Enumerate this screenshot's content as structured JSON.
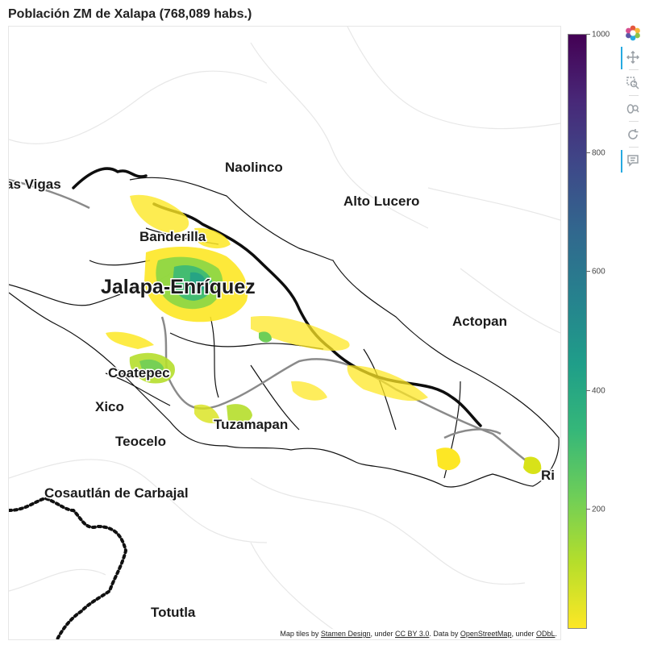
{
  "title": "Población ZM de Xalapa (768,089 habs.)",
  "map": {
    "places": [
      {
        "name": "Las Vigas",
        "shown": "as Vigas"
      },
      {
        "name": "Naolinco",
        "shown": "Naolinco"
      },
      {
        "name": "Alto Lucero",
        "shown": "Alto Lucero"
      },
      {
        "name": "Banderilla",
        "shown": "Banderilla"
      },
      {
        "name": "Xalapa-Enríquez",
        "shown": "Jalapa-Enríquez"
      },
      {
        "name": "Actopan",
        "shown": "Actopan"
      },
      {
        "name": "Coatepec",
        "shown": "Coatepec"
      },
      {
        "name": "Xico",
        "shown": "Xico"
      },
      {
        "name": "Tuzamapan",
        "shown": "Tuzamapan"
      },
      {
        "name": "Teocelo",
        "shown": "Teocelo"
      },
      {
        "name": "Rinconada",
        "shown": "Ri"
      },
      {
        "name": "Cosautlán de Carbajal",
        "shown": "Cosautlán de Carbajal"
      },
      {
        "name": "Totutla",
        "shown": "Totutla"
      }
    ],
    "attribution": {
      "prefix": "Map tiles by ",
      "link1": "Stamen Design",
      "mid1": ", under ",
      "link2": "CC BY 3.0",
      "mid2": ". Data by ",
      "link3": "OpenStreetMap",
      "mid3": ", under ",
      "link4": "ODbL",
      "suffix": "."
    }
  },
  "colorbar": {
    "palette": "Viridis (reversed)",
    "low": 0,
    "high": 1000,
    "ticks": [
      "1000",
      "800",
      "600",
      "400",
      "200"
    ],
    "colors": [
      "#fde725",
      "#b5de2b",
      "#6ece58",
      "#35b779",
      "#1f9e89",
      "#26828e",
      "#31688e",
      "#3e4989",
      "#482878",
      "#440154"
    ]
  },
  "toolbar": {
    "tools": [
      {
        "name": "bokeh-logo-icon",
        "active": false
      },
      {
        "name": "pan-tool-icon",
        "active": true
      },
      {
        "name": "box-zoom-tool-icon",
        "active": false
      },
      {
        "name": "wheel-zoom-tool-icon",
        "active": false
      },
      {
        "name": "reset-tool-icon",
        "active": false
      },
      {
        "name": "hover-tool-icon",
        "active": true
      }
    ]
  }
}
